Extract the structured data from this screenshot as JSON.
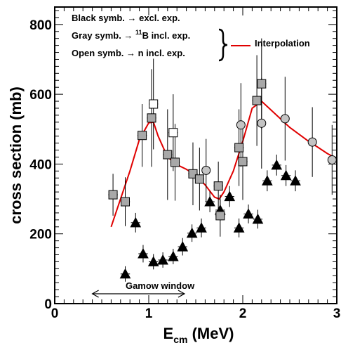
{
  "chart_data": {
    "type": "scatter",
    "xlabel": "E",
    "xlabel_sub": "cm",
    "xlabel_unit": "(MeV)",
    "ylabel": "cross section (mb)",
    "xlim": [
      0,
      3
    ],
    "ylim": [
      0,
      850
    ],
    "x_ticks": [
      "0",
      "1",
      "2",
      "3"
    ],
    "y_ticks": [
      "0",
      "200",
      "400",
      "600",
      "800"
    ],
    "grid": false,
    "legend_lines": [
      {
        "text_before": "Black symb. → excl. exp.",
        "sup": "",
        "text_after": ""
      },
      {
        "text_before": "Gray symb. → ",
        "sup": "11",
        "text_after": "B incl. exp."
      },
      {
        "text_before": "Open symb. → n incl. exp.",
        "sup": "",
        "text_after": ""
      }
    ],
    "interpolation_label": "Interpolation",
    "interpolation_color": "#e00000",
    "annotation": {
      "text": "Gamow window",
      "x_range": [
        0.4,
        1.38
      ]
    },
    "series": [
      {
        "style": "black-triangles",
        "color": "#000000",
        "points": [
          {
            "x": 0.75,
            "y": 85,
            "yerr": 22,
            "xerr": 0.05
          },
          {
            "x": 0.86,
            "y": 232,
            "yerr": 28,
            "xerr": 0.05
          },
          {
            "x": 0.94,
            "y": 143,
            "yerr": 25,
            "xerr": 0.05
          },
          {
            "x": 1.05,
            "y": 120,
            "yerr": 22,
            "xerr": 0.05
          },
          {
            "x": 1.15,
            "y": 125,
            "yerr": 22,
            "xerr": 0.05
          },
          {
            "x": 1.26,
            "y": 135,
            "yerr": 22,
            "xerr": 0.05
          },
          {
            "x": 1.36,
            "y": 163,
            "yerr": 25,
            "xerr": 0.05
          },
          {
            "x": 1.46,
            "y": 202,
            "yerr": 25,
            "xerr": 0.05
          },
          {
            "x": 1.56,
            "y": 217,
            "yerr": 27,
            "xerr": 0.05
          },
          {
            "x": 1.65,
            "y": 292,
            "yerr": 30,
            "xerr": 0.05
          },
          {
            "x": 1.76,
            "y": 268,
            "yerr": 30,
            "xerr": 0.05
          },
          {
            "x": 1.86,
            "y": 307,
            "yerr": 30,
            "xerr": 0.05
          },
          {
            "x": 1.96,
            "y": 217,
            "yerr": 27,
            "xerr": 0.05
          },
          {
            "x": 2.06,
            "y": 257,
            "yerr": 27,
            "xerr": 0.05
          },
          {
            "x": 2.16,
            "y": 242,
            "yerr": 27,
            "xerr": 0.05
          },
          {
            "x": 2.26,
            "y": 352,
            "yerr": 30,
            "xerr": 0.05
          },
          {
            "x": 2.36,
            "y": 397,
            "yerr": 30,
            "xerr": 0.05
          },
          {
            "x": 2.46,
            "y": 367,
            "yerr": 30,
            "xerr": 0.05
          },
          {
            "x": 2.56,
            "y": 352,
            "yerr": 30,
            "xerr": 0.05
          }
        ]
      },
      {
        "style": "gray-squares",
        "color": "#a8a8a8",
        "points": [
          {
            "x": 0.62,
            "y": 312,
            "yerr": 60,
            "xerr": 0.05
          },
          {
            "x": 0.75,
            "y": 292,
            "yerr": 70,
            "xerr": 0.05
          },
          {
            "x": 0.93,
            "y": 482,
            "yerr": 90,
            "xerr": 0.05
          },
          {
            "x": 1.03,
            "y": 532,
            "yerr": 140,
            "xerr": 0.05
          },
          {
            "x": 1.2,
            "y": 427,
            "yerr": 130,
            "xerr": 0.05
          },
          {
            "x": 1.28,
            "y": 405,
            "yerr": 110,
            "xerr": 0.05
          },
          {
            "x": 1.47,
            "y": 372,
            "yerr": 90,
            "xerr": 0.05
          },
          {
            "x": 1.54,
            "y": 357,
            "yerr": 90,
            "xerr": 0.05
          },
          {
            "x": 1.74,
            "y": 337,
            "yerr": 70,
            "xerr": 0.05
          },
          {
            "x": 1.76,
            "y": 252,
            "yerr": 60,
            "xerr": 0.05
          },
          {
            "x": 1.96,
            "y": 447,
            "yerr": 110,
            "xerr": 0.05
          },
          {
            "x": 2.0,
            "y": 407,
            "yerr": 110,
            "xerr": 0.05
          },
          {
            "x": 2.15,
            "y": 582,
            "yerr": 130,
            "xerr": 0.05
          },
          {
            "x": 2.2,
            "y": 630,
            "yerr": 130,
            "xerr": 0.05
          }
        ]
      },
      {
        "style": "gray-circles",
        "color": "#c4c4c4",
        "points": [
          {
            "x": 1.61,
            "y": 382,
            "yerr": 90
          },
          {
            "x": 1.98,
            "y": 512,
            "yerr": 120
          },
          {
            "x": 2.2,
            "y": 517,
            "yerr": 130
          },
          {
            "x": 2.45,
            "y": 530,
            "yerr": 120
          },
          {
            "x": 2.74,
            "y": 463,
            "yerr": 100
          },
          {
            "x": 2.95,
            "y": 412,
            "yerr": 100
          }
        ]
      },
      {
        "style": "open-squares",
        "color": "#ffffff",
        "points": [
          {
            "x": 1.05,
            "y": 572,
            "yerr": 130,
            "xerr": 0.05
          },
          {
            "x": 1.26,
            "y": 490,
            "yerr": 110,
            "xerr": 0.05
          }
        ]
      }
    ],
    "interpolation": {
      "x": [
        0.6,
        0.7,
        0.8,
        0.9,
        1.0,
        1.05,
        1.1,
        1.2,
        1.3,
        1.4,
        1.5,
        1.6,
        1.7,
        1.75,
        1.8,
        1.9,
        2.0,
        2.1,
        2.2,
        2.3,
        2.4,
        2.5,
        2.6,
        2.7,
        2.8,
        2.9,
        2.97
      ],
      "y": [
        220,
        300,
        380,
        470,
        518,
        520,
        480,
        420,
        398,
        385,
        368,
        340,
        305,
        300,
        320,
        380,
        465,
        560,
        580,
        555,
        530,
        505,
        485,
        465,
        448,
        430,
        420
      ]
    }
  }
}
